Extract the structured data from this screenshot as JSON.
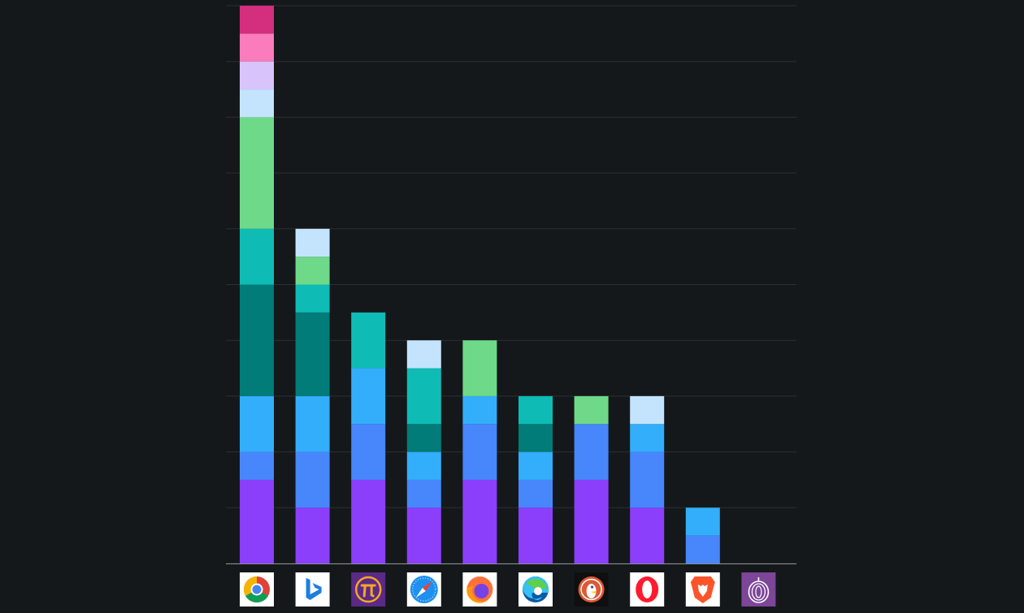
{
  "page": {
    "background": "#15181b"
  },
  "chart_data": {
    "type": "bar",
    "stacked": true,
    "title": "",
    "xlabel": "",
    "ylabel": "",
    "ylim": [
      0,
      10
    ],
    "grid": true,
    "legend": "none",
    "categories": [
      "chrome",
      "bing",
      "pi-browser",
      "safari",
      "firefox",
      "edge",
      "duckduckgo",
      "opera",
      "brave",
      "tor"
    ],
    "category_icons": [
      "chrome-icon",
      "bing-icon",
      "pi-browser-icon",
      "safari-icon",
      "firefox-icon",
      "edge-icon",
      "duckduckgo-icon",
      "opera-icon",
      "brave-icon",
      "tor-icon"
    ],
    "series": [
      {
        "color": "#8b3ffb",
        "values": [
          1.5,
          1,
          1.5,
          1,
          1.5,
          1,
          1.5,
          1,
          0,
          0
        ]
      },
      {
        "color": "#4787fb",
        "values": [
          0.5,
          1,
          1,
          0.5,
          1,
          0.5,
          1,
          1,
          0.5,
          0
        ]
      },
      {
        "color": "#33aefb",
        "values": [
          1,
          1,
          1,
          0.5,
          0.5,
          0.5,
          0,
          0.5,
          0.5,
          0
        ]
      },
      {
        "color": "#017c78",
        "values": [
          2,
          1.5,
          0,
          0.5,
          0,
          0.5,
          0,
          0,
          0,
          0
        ]
      },
      {
        "color": "#0ebcb5",
        "values": [
          1,
          0.5,
          1,
          1,
          0,
          0.5,
          0,
          0,
          0,
          0
        ]
      },
      {
        "color": "#6fd98a",
        "values": [
          2,
          0.5,
          0,
          0,
          1,
          0,
          0.5,
          0,
          0,
          0
        ]
      },
      {
        "color": "#c4e4fe",
        "values": [
          0.5,
          0.5,
          0,
          0.5,
          0,
          0,
          0,
          0.5,
          0,
          0
        ]
      },
      {
        "color": "#d8c3fb",
        "values": [
          0.5,
          0,
          0,
          0,
          0,
          0,
          0,
          0,
          0,
          0
        ]
      },
      {
        "color": "#fb7cbd",
        "values": [
          0.5,
          0,
          0,
          0,
          0,
          0,
          0,
          0,
          0,
          0
        ]
      },
      {
        "color": "#d42e7e",
        "values": [
          0.5,
          0,
          0,
          0,
          0,
          0,
          0,
          0,
          0,
          0
        ]
      }
    ]
  }
}
